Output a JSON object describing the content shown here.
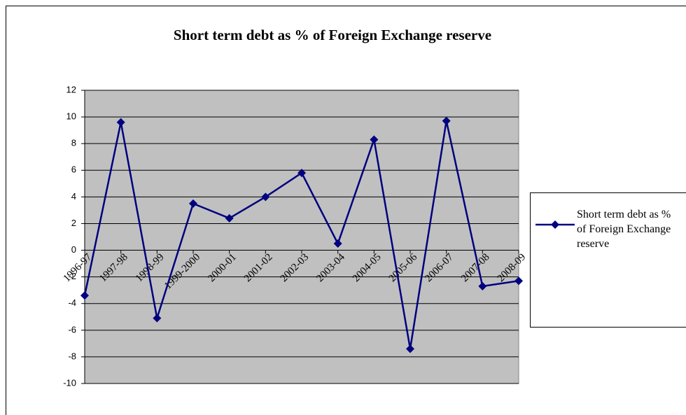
{
  "chart_data": {
    "type": "line",
    "title": "Short term debt as % of Foreign Exchange reserve",
    "categories": [
      "1996-97",
      "1997-98",
      "1998-99",
      "1999-2000",
      "2000-01",
      "2001-02",
      "2002-03",
      "2003-04",
      "2004-05",
      "2005-06",
      "2006-07",
      "2007-08",
      "2008-09"
    ],
    "series": [
      {
        "name": "Short term debt as % of Foreign Exchange reserve",
        "color": "#000080",
        "values": [
          -3.4,
          9.6,
          -5.1,
          3.5,
          2.4,
          4.0,
          5.8,
          0.5,
          8.3,
          -7.4,
          9.7,
          -2.7,
          -2.3
        ]
      }
    ],
    "ylim": [
      -10,
      12
    ],
    "yticks": [
      -10,
      -8,
      -6,
      -4,
      -2,
      0,
      2,
      4,
      6,
      8,
      10,
      12
    ],
    "grid": true,
    "legend": "right"
  }
}
